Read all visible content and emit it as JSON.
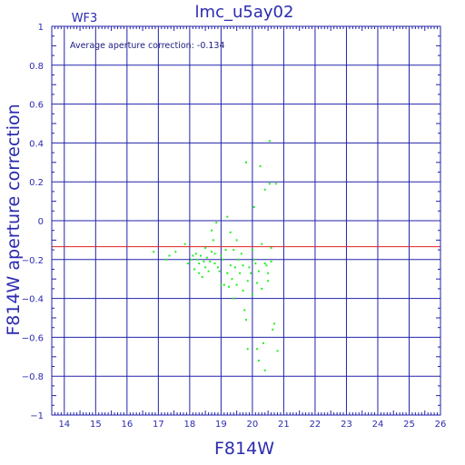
{
  "chart_data": {
    "type": "scatter",
    "title": "lmc_u5ay02",
    "panel_label": "WF3",
    "xlabel": "F814W",
    "ylabel": "F814W  aperture  correction",
    "annotation": "Average aperture correction:  -0.134",
    "xlim": [
      13.6,
      26
    ],
    "ylim": [
      -1,
      1
    ],
    "x_ticks": [
      14,
      15,
      16,
      17,
      18,
      19,
      20,
      21,
      22,
      23,
      24,
      25,
      26
    ],
    "y_ticks": [
      -1,
      -0.8,
      -0.6,
      -0.4,
      -0.2,
      0,
      0.2,
      0.4,
      0.6,
      0.8,
      1
    ],
    "y_tick_labels": [
      "−1",
      "−0.8",
      "−0.6",
      "−0.4",
      "−0.2",
      "0",
      "0.2",
      "0.4",
      "0.6",
      "0.8",
      "1"
    ],
    "grid": true,
    "reference_line": {
      "y": -0.134,
      "color": "#e02020"
    },
    "colors": {
      "axes": "#2222aa",
      "points": "#22ee22",
      "text": "#2b2bb0"
    },
    "points": [
      [
        16.85,
        -0.16
      ],
      [
        17.25,
        -0.2
      ],
      [
        17.35,
        -0.18
      ],
      [
        17.55,
        -0.16
      ],
      [
        17.85,
        -0.12
      ],
      [
        17.95,
        -0.22
      ],
      [
        18.05,
        -0.2
      ],
      [
        18.1,
        -0.18
      ],
      [
        18.15,
        -0.25
      ],
      [
        18.2,
        -0.17
      ],
      [
        18.25,
        -0.2
      ],
      [
        18.3,
        -0.22
      ],
      [
        18.3,
        -0.27
      ],
      [
        18.35,
        -0.18
      ],
      [
        18.4,
        -0.29
      ],
      [
        18.45,
        -0.21
      ],
      [
        18.5,
        -0.14
      ],
      [
        18.5,
        -0.24
      ],
      [
        18.55,
        -0.19
      ],
      [
        18.6,
        -0.26
      ],
      [
        18.65,
        -0.21
      ],
      [
        18.7,
        -0.05
      ],
      [
        18.7,
        -0.16
      ],
      [
        18.75,
        -0.1
      ],
      [
        18.8,
        -0.17
      ],
      [
        18.8,
        -0.22
      ],
      [
        18.85,
        -0.01
      ],
      [
        18.9,
        -0.24
      ],
      [
        18.95,
        -0.26
      ],
      [
        19.0,
        -0.33
      ],
      [
        19.0,
        -0.18
      ],
      [
        19.05,
        -0.2
      ],
      [
        19.1,
        -0.33
      ],
      [
        19.15,
        -0.15
      ],
      [
        19.2,
        0.02
      ],
      [
        19.2,
        -0.27
      ],
      [
        19.25,
        -0.34
      ],
      [
        19.3,
        -0.06
      ],
      [
        19.3,
        -0.23
      ],
      [
        19.35,
        -0.3
      ],
      [
        19.4,
        -0.15
      ],
      [
        19.4,
        -0.4
      ],
      [
        19.45,
        -0.24
      ],
      [
        19.5,
        -0.1
      ],
      [
        19.5,
        -0.33
      ],
      [
        19.55,
        -0.2
      ],
      [
        19.6,
        -0.27
      ],
      [
        19.65,
        -0.17
      ],
      [
        19.7,
        -0.36
      ],
      [
        19.7,
        -0.23
      ],
      [
        19.75,
        -0.46
      ],
      [
        19.8,
        0.3
      ],
      [
        19.8,
        -0.51
      ],
      [
        19.85,
        -0.31
      ],
      [
        19.85,
        -0.66
      ],
      [
        19.9,
        -0.24
      ],
      [
        19.95,
        -0.27
      ],
      [
        20.0,
        -0.15
      ],
      [
        20.0,
        -0.38
      ],
      [
        20.05,
        0.07
      ],
      [
        20.05,
        -0.2
      ],
      [
        20.1,
        -0.22
      ],
      [
        20.15,
        -0.32
      ],
      [
        20.15,
        -0.66
      ],
      [
        20.2,
        -0.26
      ],
      [
        20.2,
        -0.72
      ],
      [
        20.25,
        0.28
      ],
      [
        20.3,
        -0.12
      ],
      [
        20.3,
        -0.35
      ],
      [
        20.35,
        -0.63
      ],
      [
        20.4,
        0.16
      ],
      [
        20.4,
        -0.22
      ],
      [
        20.4,
        -0.77
      ],
      [
        20.45,
        -0.23
      ],
      [
        20.5,
        -0.27
      ],
      [
        20.5,
        -0.31
      ],
      [
        20.55,
        0.41
      ],
      [
        20.55,
        0.19
      ],
      [
        20.6,
        -0.21
      ],
      [
        20.6,
        -0.14
      ],
      [
        20.65,
        -0.56
      ],
      [
        20.7,
        -0.53
      ],
      [
        20.75,
        0.19
      ],
      [
        20.8,
        -0.67
      ]
    ]
  }
}
